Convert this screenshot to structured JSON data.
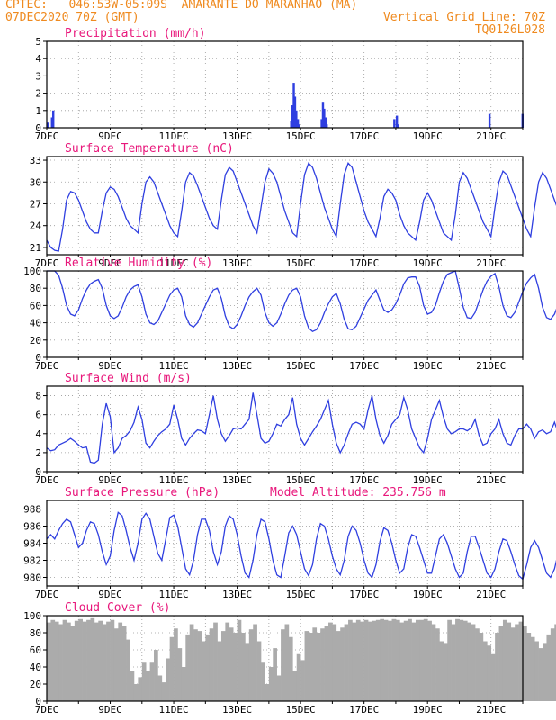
{
  "header": {
    "line1_left": "CPTEC:   046:53W-05:09S  AMARANTE DO MARANHAO (MA)",
    "line2_left": "07DEC2020 70Z (GMT)",
    "line2_right": "Vertical Grid Line: 70Z",
    "line3_right": "TQ0126L028"
  },
  "colors": {
    "header": "#ef8a1f",
    "title": "#e8177b",
    "series": "#2f3fe0",
    "cloud": "#ababab"
  },
  "chart_data": [
    {
      "type": "bar",
      "title": "Precipitation (mm/h)",
      "ylim": [
        0,
        5
      ],
      "yticks": [
        0,
        1,
        2,
        3,
        4,
        5
      ],
      "xlim": [
        0,
        15
      ],
      "xtick_labels": [
        "7DEC",
        "9DEC",
        "11DEC",
        "13DEC",
        "15DEC",
        "17DEC",
        "19DEC",
        "21DEC"
      ],
      "x_hour_step": 0.125,
      "bars": [
        [
          0.0,
          0.3
        ],
        [
          0.13,
          0.6
        ],
        [
          0.17,
          1.0
        ],
        [
          7.67,
          0.4
        ],
        [
          7.71,
          1.3
        ],
        [
          7.75,
          2.6
        ],
        [
          7.79,
          1.8
        ],
        [
          7.83,
          1.0
        ],
        [
          7.88,
          0.5
        ],
        [
          7.92,
          0.2
        ],
        [
          8.63,
          0.5
        ],
        [
          8.67,
          1.5
        ],
        [
          8.71,
          1.1
        ],
        [
          8.75,
          0.6
        ],
        [
          8.79,
          0.2
        ],
        [
          10.92,
          0.5
        ],
        [
          11.0,
          0.7
        ],
        [
          11.04,
          0.2
        ],
        [
          13.92,
          0.8
        ],
        [
          14.96,
          0.8
        ]
      ]
    },
    {
      "type": "line",
      "title": "Surface Temperature (nC)",
      "ylim": [
        20,
        33.5
      ],
      "yticks": [
        21,
        24,
        27,
        30,
        33
      ],
      "xlim": [
        0,
        15
      ],
      "xtick_labels": [
        "7DEC",
        "9DEC",
        "11DEC",
        "13DEC",
        "15DEC",
        "17DEC",
        "19DEC",
        "21DEC"
      ],
      "x_start": 0,
      "x_step": 0.125,
      "values": [
        22,
        21,
        20.6,
        20.5,
        23.5,
        27.5,
        28.7,
        28.5,
        27.5,
        26,
        24.5,
        23.5,
        23,
        23,
        26,
        28.5,
        29.3,
        29,
        28,
        26.5,
        25,
        24,
        23.5,
        23,
        27,
        30,
        30.7,
        30,
        28.5,
        27,
        25.5,
        24,
        23,
        22.5,
        26,
        30,
        31.3,
        30.8,
        29.5,
        28,
        26.5,
        25,
        24,
        23.5,
        27.5,
        31,
        32,
        31.5,
        30,
        28.5,
        27,
        25.5,
        24,
        23,
        26.5,
        30,
        31.8,
        31.2,
        30,
        28,
        26,
        24.5,
        23,
        22.5,
        27,
        31,
        32.6,
        32,
        30.5,
        28.5,
        26.5,
        25,
        23.5,
        22.5,
        27,
        31,
        32.6,
        32,
        30,
        28,
        26,
        24.5,
        23.5,
        22.5,
        25,
        28,
        29,
        28.5,
        27.5,
        25.5,
        24,
        23,
        22.5,
        22,
        24.5,
        27.5,
        28.5,
        27.5,
        26,
        24.5,
        23,
        22.5,
        22,
        25.5,
        30,
        31.3,
        30.5,
        29,
        27.5,
        26,
        24.5,
        23.5,
        22.5,
        26.5,
        30,
        31.5,
        31,
        29.5,
        28,
        26.5,
        25,
        23.5,
        22.5,
        26.5,
        30,
        31.3,
        30.5,
        29,
        27.5,
        26,
        24.5,
        23,
        22,
        26,
        29.5,
        31,
        30.5,
        29,
        27.5,
        26,
        24,
        22.5,
        21.5,
        25,
        28.5,
        30.7,
        30,
        28.5,
        27,
        25.5,
        24,
        22.5,
        21.5,
        24.5,
        28.5,
        30.5,
        30,
        28.5,
        26.5,
        24.5,
        23,
        21.5,
        21,
        24.5,
        28,
        29.3,
        29,
        27.5,
        25.8
      ]
    },
    {
      "type": "line",
      "title": "Relative Humidity (%)",
      "ylim": [
        0,
        100
      ],
      "yticks": [
        0,
        20,
        40,
        60,
        80,
        100
      ],
      "xlim": [
        0,
        15
      ],
      "xtick_labels": [
        "7DEC",
        "9DEC",
        "11DEC",
        "13DEC",
        "15DEC",
        "17DEC",
        "19DEC",
        "21DEC"
      ],
      "x_start": 0,
      "x_step": 0.125,
      "values": [
        100,
        100,
        100,
        95,
        80,
        60,
        50,
        48,
        55,
        68,
        78,
        85,
        88,
        90,
        80,
        60,
        48,
        45,
        48,
        58,
        70,
        78,
        82,
        84,
        70,
        50,
        40,
        38,
        42,
        52,
        62,
        72,
        78,
        80,
        70,
        48,
        38,
        35,
        40,
        50,
        60,
        70,
        78,
        80,
        68,
        48,
        36,
        33,
        38,
        48,
        60,
        70,
        76,
        80,
        72,
        52,
        40,
        36,
        40,
        50,
        62,
        72,
        78,
        80,
        70,
        48,
        34,
        30,
        32,
        40,
        52,
        62,
        70,
        74,
        62,
        44,
        33,
        32,
        36,
        46,
        56,
        66,
        72,
        78,
        66,
        55,
        52,
        55,
        62,
        72,
        85,
        92,
        93,
        93,
        82,
        60,
        50,
        52,
        60,
        75,
        88,
        96,
        98,
        100,
        80,
        58,
        46,
        45,
        52,
        65,
        78,
        88,
        94,
        97,
        82,
        60,
        48,
        46,
        52,
        64,
        76,
        86,
        92,
        96,
        80,
        58,
        46,
        44,
        50,
        62,
        76,
        86,
        93,
        97,
        80,
        58,
        45,
        43,
        48,
        60,
        74,
        86,
        93,
        98,
        82,
        58,
        45,
        43,
        48,
        60,
        74,
        86,
        93,
        98,
        85,
        60,
        45,
        40,
        45,
        58,
        72,
        86,
        94,
        99,
        85,
        60,
        48,
        40,
        52,
        66,
        78
      ]
    },
    {
      "type": "line",
      "title": "Surface Wind (m/s)",
      "ylim": [
        0,
        9
      ],
      "yticks": [
        0,
        2,
        4,
        6,
        8
      ],
      "xlim": [
        0,
        15
      ],
      "xtick_labels": [
        "7DEC",
        "9DEC",
        "11DEC",
        "13DEC",
        "15DEC",
        "17DEC",
        "19DEC",
        "21DEC"
      ],
      "x_start": 0,
      "x_step": 0.125,
      "values": [
        2.5,
        2.2,
        2.3,
        2.8,
        3.0,
        3.2,
        3.5,
        3.2,
        2.8,
        2.5,
        2.6,
        1.0,
        0.9,
        1.2,
        5.0,
        7.2,
        5.8,
        2.0,
        2.5,
        3.5,
        3.8,
        4.3,
        5.2,
        6.8,
        5.5,
        3.0,
        2.5,
        3.2,
        3.8,
        4.2,
        4.5,
        5.0,
        7.0,
        5.5,
        3.5,
        2.8,
        3.5,
        4.0,
        4.4,
        4.3,
        4.0,
        6.0,
        8.0,
        5.5,
        4.0,
        3.2,
        3.8,
        4.5,
        4.6,
        4.5,
        5.0,
        5.5,
        8.3,
        6.0,
        3.5,
        3.0,
        3.2,
        4.0,
        5.0,
        4.8,
        5.5,
        6.0,
        7.8,
        5.0,
        3.5,
        2.8,
        3.5,
        4.2,
        4.8,
        5.5,
        6.5,
        7.5,
        5.0,
        3.0,
        2.0,
        2.8,
        4.0,
        5.0,
        5.2,
        5.0,
        4.5,
        6.5,
        8.0,
        5.5,
        3.8,
        3.0,
        3.8,
        5.0,
        5.5,
        6.0,
        7.8,
        6.5,
        4.5,
        3.5,
        2.5,
        2.0,
        3.5,
        5.5,
        6.5,
        7.5,
        5.8,
        4.5,
        4.0,
        4.2,
        4.5,
        4.5,
        4.3,
        4.6,
        5.5,
        3.8,
        2.8,
        3.0,
        4.0,
        4.5,
        5.5,
        4.0,
        3.0,
        2.8,
        3.8,
        4.5,
        4.5,
        5.0,
        4.5,
        3.5,
        4.2,
        4.4,
        4.0,
        4.2,
        5.2,
        4.0,
        3.5,
        4.0,
        4.5,
        4.7,
        4.5,
        4.2,
        3.2,
        3.5,
        3.8,
        4.0,
        4.5,
        4.8,
        4.0,
        3.5,
        2.8,
        3.2,
        4.0,
        4.5,
        4.8,
        4.0,
        3.8,
        3.5,
        3.0,
        3.0,
        4.0,
        4.5,
        5.0,
        4.8,
        4.5,
        4.5,
        4.2,
        3.8,
        3.5,
        5.5,
        6.0,
        4.8,
        3.6,
        3.2
      ]
    },
    {
      "type": "line",
      "title": "Surface Pressure (hPa)",
      "annotation": "Model Altitude: 235.756 m",
      "ylim": [
        979,
        989
      ],
      "yticks": [
        980,
        982,
        984,
        986,
        988
      ],
      "xlim": [
        0,
        15
      ],
      "xtick_labels": [
        "7DEC",
        "9DEC",
        "11DEC",
        "13DEC",
        "15DEC",
        "17DEC",
        "19DEC",
        "21DEC"
      ],
      "x_start": 0,
      "x_step": 0.125,
      "values": [
        984.5,
        985,
        984.5,
        985.5,
        986.3,
        986.8,
        986.5,
        985,
        983.5,
        984,
        985.5,
        986.5,
        986.3,
        985,
        983,
        981.5,
        982.5,
        985.5,
        987.6,
        987.2,
        985.5,
        983.5,
        982,
        984,
        986.8,
        987.5,
        986.8,
        984.8,
        982.8,
        982,
        984.5,
        987,
        987.3,
        986,
        983.5,
        981,
        980.3,
        982,
        985,
        986.8,
        986.8,
        985.5,
        983,
        981.5,
        983,
        986,
        987.2,
        986.8,
        985,
        982.5,
        980.5,
        980,
        982,
        985,
        986.8,
        986.5,
        984.5,
        982,
        980.3,
        980,
        982.5,
        985.2,
        986,
        985,
        983,
        981,
        980.2,
        981.5,
        984.5,
        986.3,
        986,
        984.5,
        982.5,
        981,
        980.3,
        982,
        984.8,
        986,
        985.5,
        984,
        982,
        980.5,
        980,
        981.5,
        984.2,
        985.8,
        985.5,
        984,
        982,
        980.5,
        981,
        983.5,
        985,
        984.8,
        983.5,
        982,
        980.5,
        980.5,
        982.5,
        984.5,
        985,
        984,
        982.5,
        981,
        980,
        980.5,
        983,
        984.8,
        984.8,
        983.5,
        982,
        980.5,
        980,
        981,
        983,
        984.5,
        984.3,
        983,
        981.5,
        980.2,
        979.8,
        981.5,
        983.5,
        984.3,
        983.5,
        982,
        980.5,
        980,
        981,
        983,
        984.3,
        983.8,
        982.5,
        981,
        979.8,
        979.5,
        981,
        983,
        984,
        983.5,
        982,
        980.5,
        979.8,
        980.5,
        982.5,
        983.8,
        983.5,
        982,
        980.5,
        979.5,
        980,
        982,
        984,
        984.5,
        983.5,
        982,
        980.5,
        979.8,
        981,
        983.5,
        985,
        984.5,
        982.5,
        980.5,
        979.5,
        980.5,
        982.5
      ]
    },
    {
      "type": "bar",
      "title": "Cloud Cover (%)",
      "ylim": [
        0,
        100
      ],
      "yticks": [
        0,
        20,
        40,
        60,
        80,
        100
      ],
      "xlim": [
        0,
        15
      ],
      "xtick_labels": [
        "7DEC",
        "9DEC",
        "11DEC",
        "13DEC",
        "15DEC",
        "17DEC",
        "19DEC",
        "21DEC"
      ],
      "x_start": 0,
      "x_step": 0.125,
      "values": [
        92,
        95,
        93,
        90,
        95,
        92,
        88,
        94,
        96,
        93,
        95,
        97,
        92,
        94,
        90,
        93,
        95,
        85,
        92,
        88,
        72,
        35,
        20,
        28,
        45,
        35,
        45,
        60,
        30,
        22,
        50,
        75,
        85,
        62,
        40,
        78,
        90,
        84,
        82,
        70,
        78,
        85,
        92,
        70,
        82,
        92,
        86,
        80,
        95,
        80,
        68,
        84,
        90,
        70,
        45,
        20,
        40,
        62,
        30,
        84,
        90,
        75,
        35,
        55,
        48,
        82,
        80,
        86,
        80,
        85,
        88,
        92,
        90,
        82,
        86,
        90,
        95,
        92,
        95,
        93,
        95,
        93,
        94,
        95,
        96,
        95,
        94,
        96,
        95,
        92,
        94,
        96,
        92,
        95,
        95,
        96,
        94,
        90,
        85,
        70,
        68,
        95,
        90,
        96,
        95,
        94,
        92,
        90,
        85,
        80,
        70,
        65,
        55,
        80,
        88,
        95,
        92,
        86,
        90,
        93,
        88,
        80,
        75,
        70,
        62,
        68,
        78,
        85,
        90,
        88,
        86,
        82,
        80,
        74,
        70,
        65,
        60,
        55,
        58,
        62,
        66,
        72,
        78,
        80,
        76,
        72,
        78,
        74,
        68,
        55,
        45,
        52,
        60,
        70,
        78,
        82,
        80,
        84,
        88,
        92,
        94,
        96,
        95,
        93,
        92,
        94,
        93
      ]
    }
  ]
}
